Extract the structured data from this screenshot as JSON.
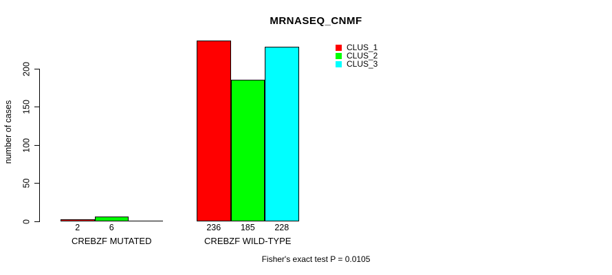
{
  "chart_data": {
    "type": "bar",
    "title": "MRNASEQ_CNMF",
    "ylabel": "number of cases",
    "xlabel": "",
    "groups": [
      "CREBZF MUTATED",
      "CREBZF WILD-TYPE"
    ],
    "series": [
      {
        "name": "CLUS_1",
        "color": "#ff0000",
        "values": [
          2,
          236
        ]
      },
      {
        "name": "CLUS_2",
        "color": "#00ff00",
        "values": [
          6,
          185
        ]
      },
      {
        "name": "CLUS_3",
        "color": "#00ffff",
        "values": [
          0,
          228
        ]
      }
    ],
    "bar_value_labels": [
      [
        "2",
        "6",
        ""
      ],
      [
        "236",
        "185",
        "228"
      ]
    ],
    "yticks": [
      0,
      50,
      100,
      150,
      200
    ],
    "ylim": [
      0,
      236
    ],
    "grid": false,
    "legend_position": "top-right",
    "bar_border_color": "#000000",
    "annotation": "Fisher's exact test P = 0.0105"
  }
}
